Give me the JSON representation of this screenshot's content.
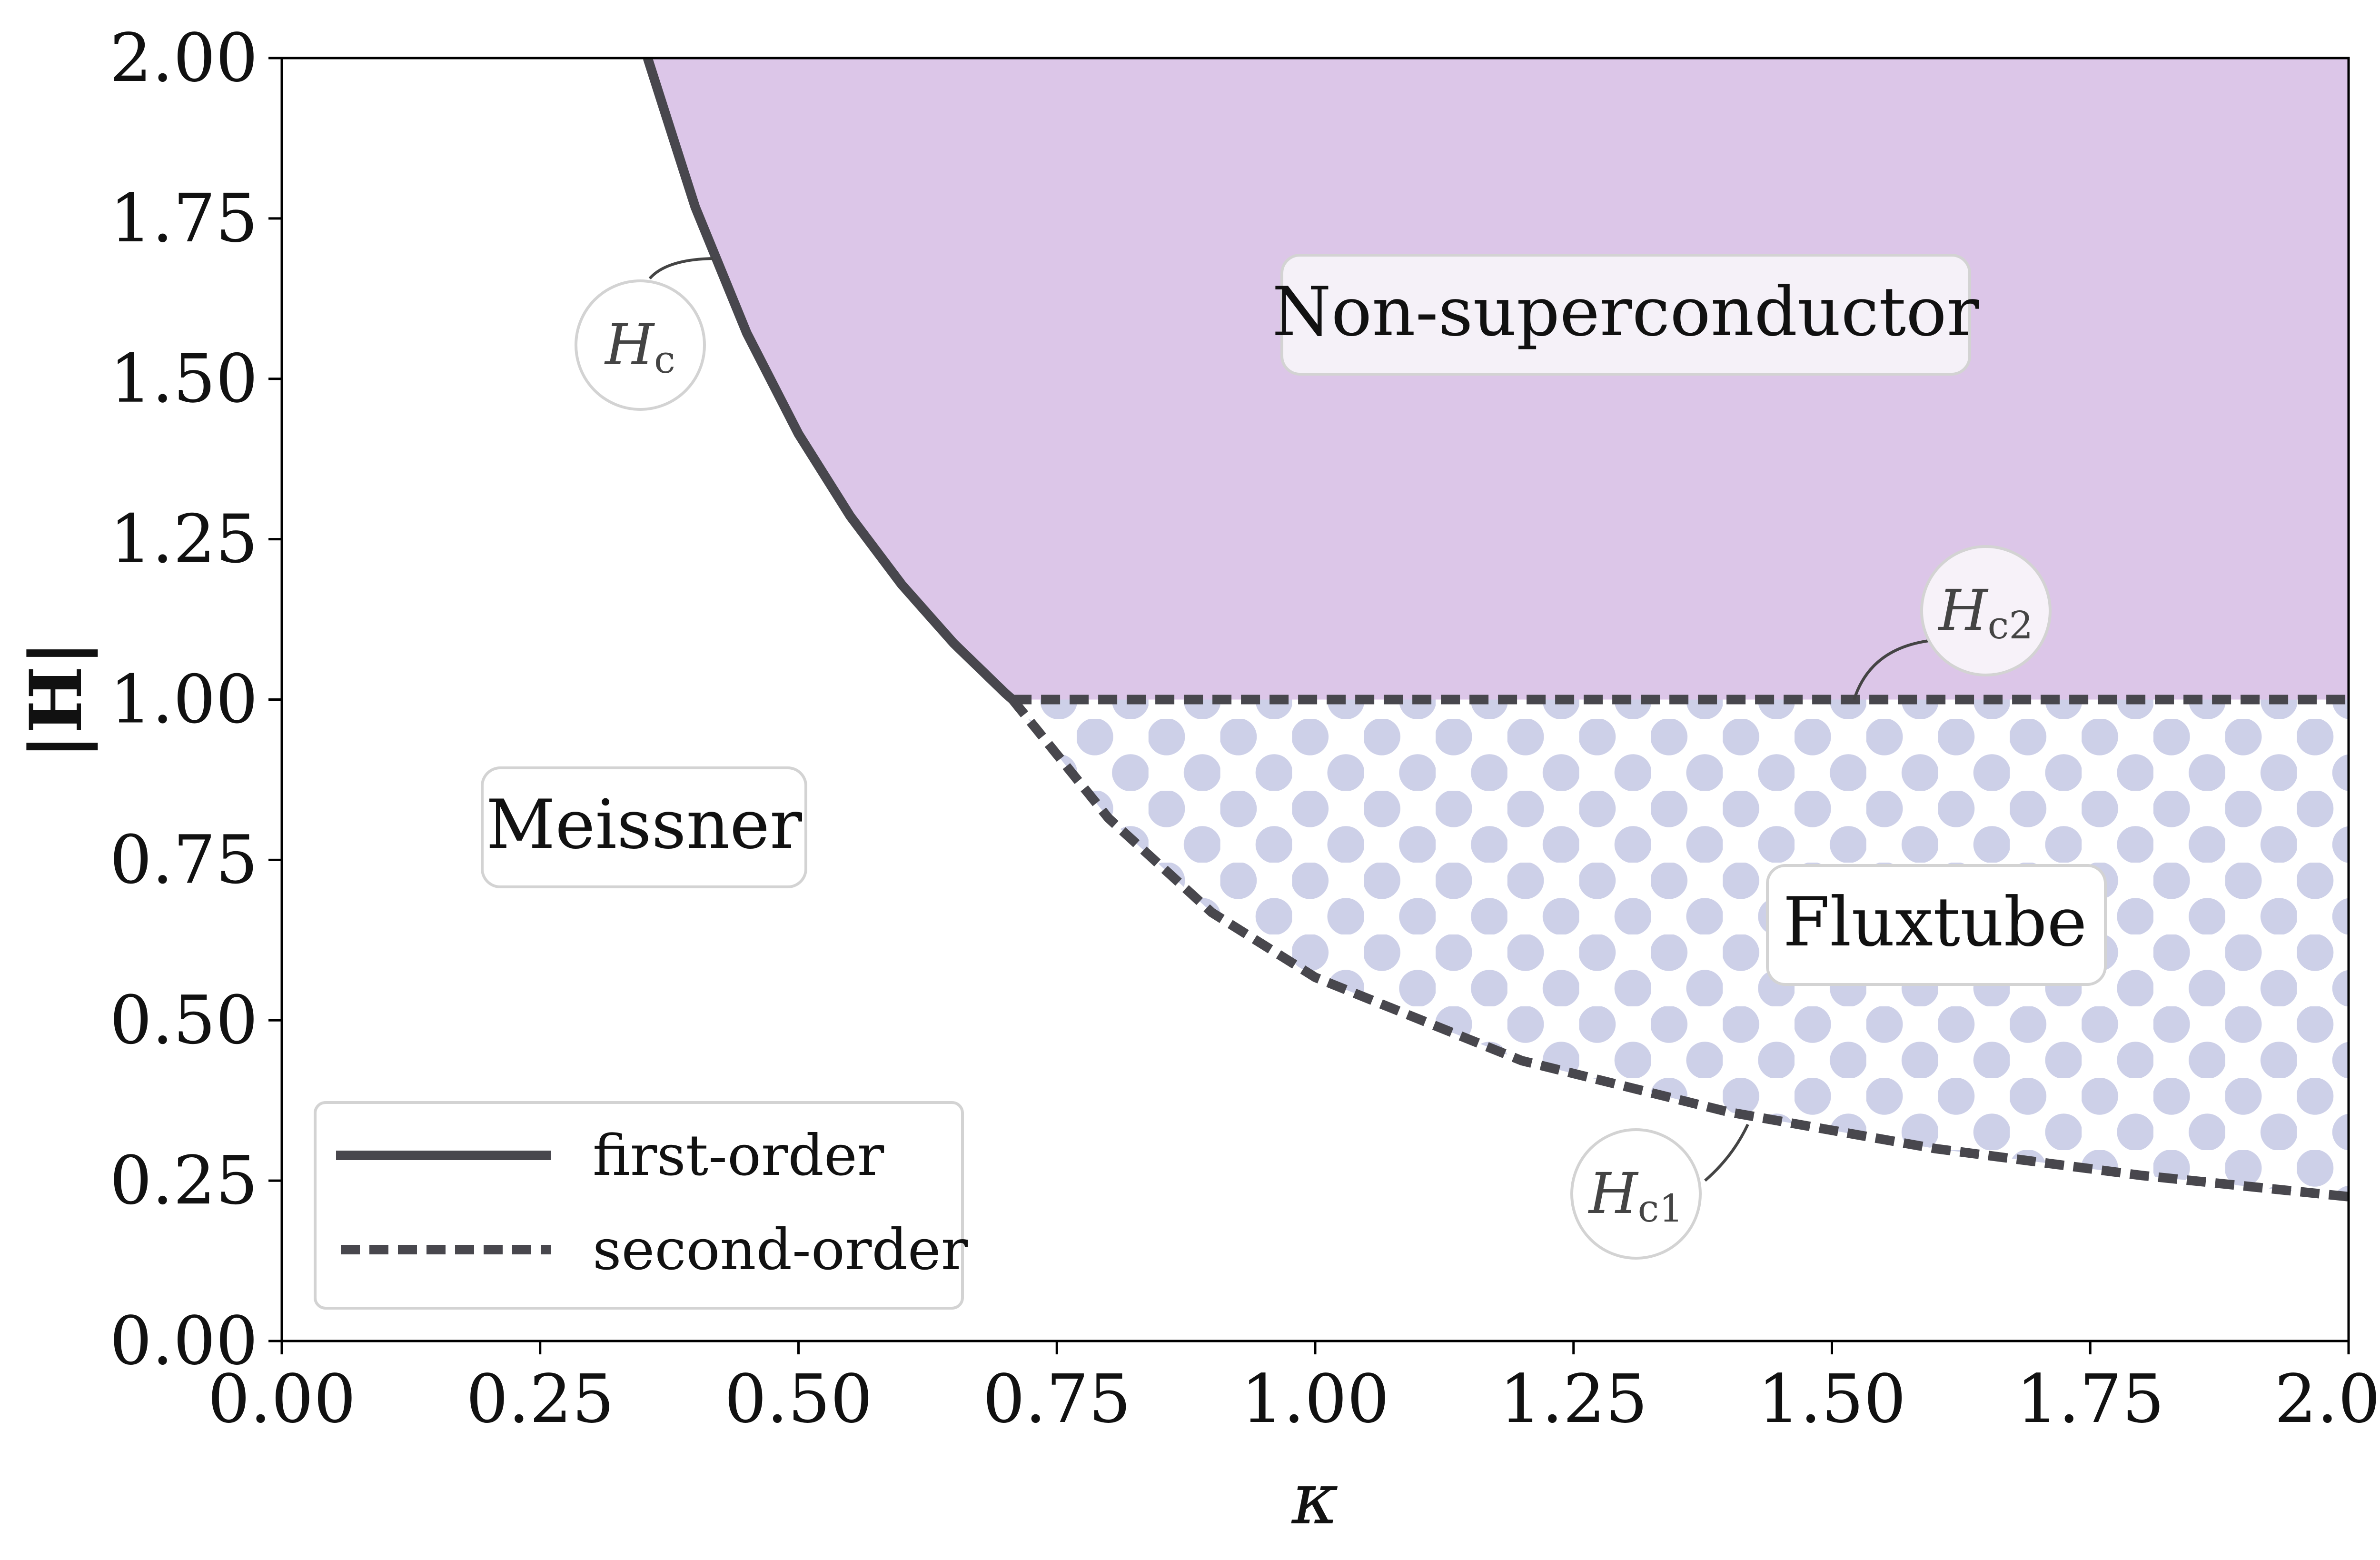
{
  "chart_data": {
    "type": "area",
    "xlabel": "κ",
    "ylabel": "|H|",
    "xlim": [
      0,
      2
    ],
    "ylim": [
      0,
      2
    ],
    "x_ticks": [
      "0.00",
      "0.25",
      "0.50",
      "0.75",
      "1.00",
      "1.25",
      "1.50",
      "1.75",
      "2.00"
    ],
    "y_ticks": [
      "0.00",
      "0.25",
      "0.50",
      "0.75",
      "1.00",
      "1.25",
      "1.50",
      "1.75",
      "2.00"
    ],
    "grid": false,
    "legend_position": "bottom-left",
    "legend": [
      {
        "label": "first-order",
        "style": "solid"
      },
      {
        "label": "second-order",
        "style": "dashed"
      }
    ],
    "series": [
      {
        "curve": "Hc",
        "style": "solid",
        "x": [
          0.354,
          0.4,
          0.45,
          0.5,
          0.55,
          0.6,
          0.65,
          0.7,
          0.7071
        ],
        "y": [
          2.0,
          1.768,
          1.571,
          1.414,
          1.286,
          1.179,
          1.088,
          1.01,
          1.0
        ]
      },
      {
        "curve": "Hc2",
        "style": "dashed",
        "x": [
          0.7071,
          2.0
        ],
        "y": [
          1.0,
          1.0
        ]
      },
      {
        "curve": "Hc1",
        "style": "dashed",
        "x": [
          0.7071,
          0.8,
          0.9,
          1.0,
          1.2,
          1.4,
          1.6,
          1.8,
          2.0
        ],
        "y": [
          1.0,
          0.815,
          0.668,
          0.567,
          0.437,
          0.357,
          0.3,
          0.258,
          0.225
        ]
      }
    ],
    "regions": [
      {
        "label": "Non-superconductor",
        "color": "#dcc6e8"
      },
      {
        "label": "Meissner",
        "color": "#ffffff"
      },
      {
        "label": "Fluxtube",
        "color": "#cdd0e8"
      }
    ],
    "annotations": [
      {
        "symbol": "H",
        "subscript": "c"
      },
      {
        "symbol": "H",
        "subscript": "c2"
      },
      {
        "symbol": "H",
        "subscript": "c1"
      }
    ]
  }
}
